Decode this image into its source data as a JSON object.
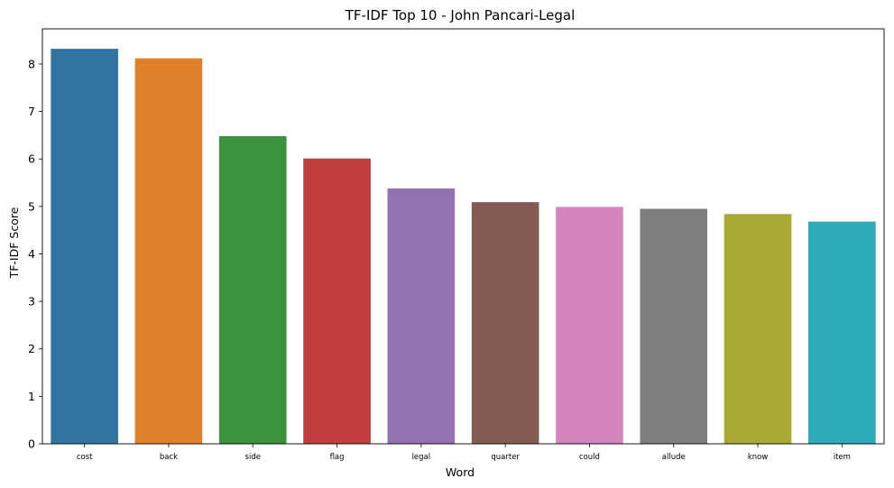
{
  "chart_data": {
    "type": "bar",
    "title": "TF-IDF Top 10 - John Pancari-Legal",
    "xlabel": "Word",
    "ylabel": "TF-IDF Score",
    "categories": [
      "cost",
      "back",
      "side",
      "flag",
      "legal",
      "quarter",
      "could",
      "allude",
      "know",
      "item"
    ],
    "values": [
      8.32,
      8.12,
      6.48,
      6.01,
      5.38,
      5.09,
      4.99,
      4.95,
      4.84,
      4.68
    ],
    "colors": [
      "#3274a1",
      "#e1812c",
      "#3a923a",
      "#c03d3e",
      "#9372b2",
      "#845b53",
      "#d684bd",
      "#7f7f7f",
      "#a9aa35",
      "#2eabb8"
    ],
    "ylim": [
      0,
      8.74
    ],
    "yticks": [
      0,
      1,
      2,
      3,
      4,
      5,
      6,
      7,
      8
    ],
    "grid": false,
    "legend": "none"
  }
}
